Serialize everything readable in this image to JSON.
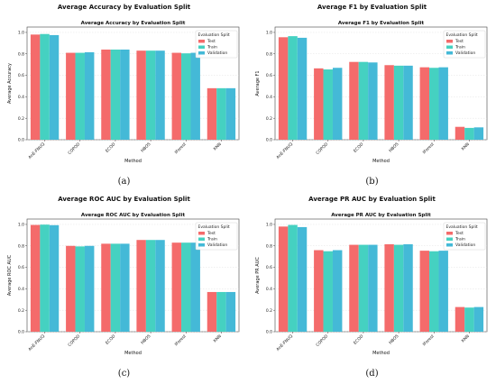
{
  "colors": {
    "Test": "#f46b6b",
    "Train": "#45d1c1",
    "Validation": "#44b9d7"
  },
  "chart_data": [
    {
      "type": "bar",
      "suptitle": "Average Accuracy by Evaluation Split",
      "title": "Average Accuracy by Evaluation Split",
      "xlabel": "Method",
      "ylabel": "Average Accuracy",
      "caption": "(a)",
      "legend": {
        "title": "Evaluation Split",
        "position": "top-right"
      },
      "categories": [
        "AnE-FNUQ",
        "COPOD",
        "ECOD",
        "HBOS",
        "IForest",
        "KNN"
      ],
      "yticks": [
        "0.0",
        "0.2",
        "0.4",
        "0.6",
        "0.8",
        "1.0"
      ],
      "ylim": [
        0,
        1.05
      ],
      "grid": true,
      "series": [
        {
          "name": "Test",
          "values": [
            0.98,
            0.81,
            0.84,
            0.83,
            0.81,
            0.48
          ]
        },
        {
          "name": "Train",
          "values": [
            0.985,
            0.81,
            0.84,
            0.83,
            0.805,
            0.48
          ]
        },
        {
          "name": "Validation",
          "values": [
            0.975,
            0.815,
            0.84,
            0.83,
            0.81,
            0.48
          ]
        }
      ]
    },
    {
      "type": "bar",
      "suptitle": "Average F1 by Evaluation Split",
      "title": "Average F1 by Evaluation Split",
      "xlabel": "Method",
      "ylabel": "Average F1",
      "caption": "(b)",
      "legend": {
        "title": "Evaluation Split",
        "position": "top-right"
      },
      "categories": [
        "AnE-FNUQ",
        "COPOD",
        "ECOD",
        "HBOS",
        "IForest",
        "KNN"
      ],
      "yticks": [
        "0.0",
        "0.2",
        "0.4",
        "0.6",
        "0.8",
        "1.0"
      ],
      "ylim": [
        0,
        1.05
      ],
      "grid": true,
      "series": [
        {
          "name": "Test",
          "values": [
            0.955,
            0.665,
            0.725,
            0.695,
            0.675,
            0.12
          ]
        },
        {
          "name": "Train",
          "values": [
            0.965,
            0.655,
            0.725,
            0.69,
            0.67,
            0.11
          ]
        },
        {
          "name": "Validation",
          "values": [
            0.95,
            0.67,
            0.72,
            0.69,
            0.675,
            0.115
          ]
        }
      ]
    },
    {
      "type": "bar",
      "suptitle": "Average ROC AUC by Evaluation Split",
      "title": "Average ROC AUC by Evaluation Split",
      "xlabel": "Method",
      "ylabel": "Average ROC AUC",
      "caption": "(c)",
      "legend": {
        "title": "Evaluation Split",
        "position": "top-right"
      },
      "categories": [
        "AnE-FNUQ",
        "COPOD",
        "ECOD",
        "HBOS",
        "IForest",
        "KNN"
      ],
      "yticks": [
        "0.0",
        "0.2",
        "0.4",
        "0.6",
        "0.8",
        "1.0"
      ],
      "ylim": [
        0,
        1.05
      ],
      "grid": true,
      "series": [
        {
          "name": "Test",
          "values": [
            0.995,
            0.8,
            0.82,
            0.855,
            0.83,
            0.37
          ]
        },
        {
          "name": "Train",
          "values": [
            0.998,
            0.795,
            0.82,
            0.855,
            0.83,
            0.37
          ]
        },
        {
          "name": "Validation",
          "values": [
            0.993,
            0.8,
            0.82,
            0.855,
            0.83,
            0.37
          ]
        }
      ]
    },
    {
      "type": "bar",
      "suptitle": "Average PR AUC by Evaluation Split",
      "title": "Average PR AUC by Evaluation Split",
      "xlabel": "Method",
      "ylabel": "Average PR AUC",
      "caption": "(d)",
      "legend": {
        "title": "Evaluation Split",
        "position": "top-right"
      },
      "categories": [
        "AnE-FNUQ",
        "COPOD",
        "ECOD",
        "HBOS",
        "IForest",
        "KNN"
      ],
      "yticks": [
        "0.0",
        "0.2",
        "0.4",
        "0.6",
        "0.8",
        "1.0"
      ],
      "ylim": [
        0,
        1.05
      ],
      "grid": true,
      "series": [
        {
          "name": "Test",
          "values": [
            0.98,
            0.76,
            0.81,
            0.815,
            0.755,
            0.23
          ]
        },
        {
          "name": "Train",
          "values": [
            0.995,
            0.75,
            0.81,
            0.81,
            0.75,
            0.225
          ]
        },
        {
          "name": "Validation",
          "values": [
            0.975,
            0.76,
            0.81,
            0.815,
            0.755,
            0.23
          ]
        }
      ]
    }
  ]
}
